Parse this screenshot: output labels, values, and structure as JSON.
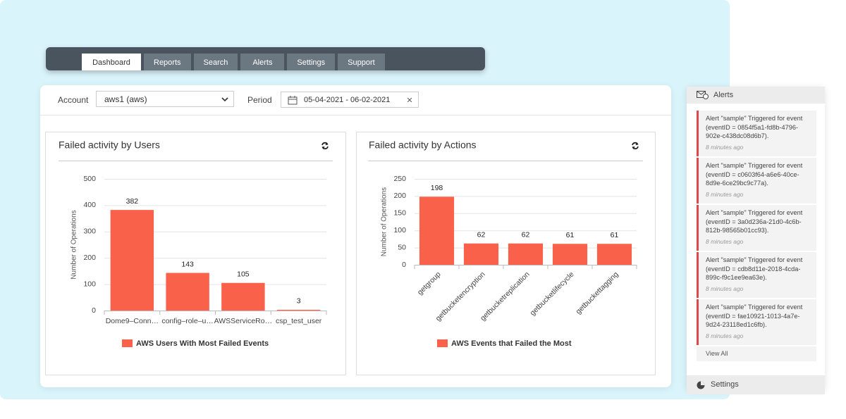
{
  "nav": {
    "tabs": [
      "Dashboard",
      "Reports",
      "Search",
      "Alerts",
      "Settings",
      "Support"
    ]
  },
  "filters": {
    "account_label": "Account",
    "account_value": "aws1 (aws)",
    "period_label": "Period",
    "period_value": "05-04-2021 - 06-02-2021"
  },
  "chart_data": [
    {
      "type": "bar",
      "title": "Failed activity by Users",
      "y_label": "Number of Operations",
      "categories": [
        "Dome9–Conn…",
        "config–role–u…",
        "AWSServiceRo…",
        "csp_test_user"
      ],
      "series": [
        {
          "name": "AWS Users With Most Failed Events",
          "color": "#fa614a",
          "values": [
            382,
            143,
            105,
            3
          ]
        }
      ],
      "ylim": [
        0,
        500
      ],
      "yticks": [
        0,
        100,
        200,
        300,
        400,
        500
      ],
      "grid": true
    },
    {
      "type": "bar",
      "title": "Failed activity by Actions",
      "y_label": "Number of Operations",
      "categories": [
        "getgroup",
        "getbucketencryption",
        "getbucketreplication",
        "getbucketlifecycle",
        "getbuckettagging"
      ],
      "series": [
        {
          "name": "AWS Events that Failed the Most",
          "color": "#fa614a",
          "values": [
            198,
            62,
            62,
            61,
            61
          ]
        }
      ],
      "ylim": [
        0,
        250
      ],
      "yticks": [
        0,
        50,
        100,
        150,
        200,
        250
      ],
      "grid": true
    }
  ],
  "alerts": {
    "title": "Alerts",
    "items": [
      {
        "text": "Alert \"sample\" Triggered for event (eventID = 0854f5a1-fd8b-4796-902e-c438dc08d6b7).",
        "time": "8 minutes ago"
      },
      {
        "text": "Alert \"sample\" Triggered for event (eventID = c0603f64-a6e6-40ce-8d9e-6ce29bc9c77a).",
        "time": "8 minutes ago"
      },
      {
        "text": "Alert \"sample\" Triggered for event (eventID = 3a0d236a-21d0-4c6b-812b-98565b01cc93).",
        "time": "8 minutes ago"
      },
      {
        "text": "Alert \"sample\" Triggered for event (eventID = cdb8d11e-2018-4cda-899c-f9c1ee9ea63e).",
        "time": "8 minutes ago"
      },
      {
        "text": "Alert \"sample\" Triggered for event (eventID = fae10921-1013-4a7e-9d24-23118ed1c6fb).",
        "time": "8 minutes ago"
      }
    ],
    "view_all": "View All",
    "settings": "Settings"
  }
}
